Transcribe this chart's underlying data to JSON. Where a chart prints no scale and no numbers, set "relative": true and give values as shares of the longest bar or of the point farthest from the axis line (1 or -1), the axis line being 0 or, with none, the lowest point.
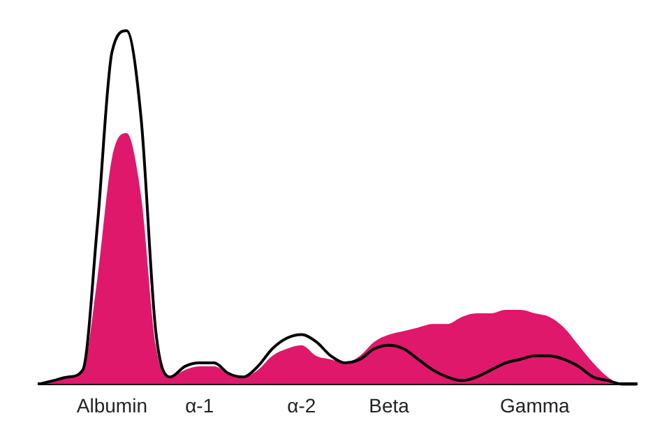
{
  "chart_data": {
    "type": "area",
    "relative": true,
    "legend": false,
    "grid": false,
    "marker": "none",
    "categories": [
      null,
      null,
      null,
      null,
      null,
      "Albumin",
      null,
      null,
      null,
      null,
      null,
      "α-1",
      null,
      null,
      null,
      null,
      null,
      null,
      "α-2",
      null,
      null,
      null,
      null,
      null,
      "Beta",
      null,
      null,
      null,
      null,
      null,
      null,
      null,
      null,
      null,
      "Gamma",
      null,
      null,
      null,
      null,
      null,
      null,
      null
    ],
    "series": [
      {
        "color": "#e0186c",
        "values": [
          0,
          0.01,
          0.02,
          0.04,
          0.3,
          0.64,
          0.71,
          0.53,
          0.11,
          0.02,
          0.04,
          0.05,
          0.05,
          0.03,
          0.02,
          0.04,
          0.08,
          0.1,
          0.11,
          0.08,
          0.07,
          0.06,
          0.08,
          0.12,
          0.14,
          0.15,
          0.16,
          0.17,
          0.17,
          0.19,
          0.2,
          0.2,
          0.21,
          0.21,
          0.2,
          0.19,
          0.16,
          0.11,
          0.06,
          0.02,
          0,
          0
        ]
      },
      {
        "type": "line",
        "color": "#000000",
        "values": [
          0,
          0.01,
          0.02,
          0.04,
          0.45,
          0.94,
          1,
          0.75,
          0.15,
          0.02,
          0.05,
          0.06,
          0.06,
          0.03,
          0.02,
          0.05,
          0.1,
          0.13,
          0.14,
          0.12,
          0.08,
          0.06,
          0.07,
          0.1,
          0.11,
          0.1,
          0.07,
          0.04,
          0.02,
          0.01,
          0.02,
          0.04,
          0.06,
          0.07,
          0.08,
          0.08,
          0.07,
          0.05,
          0.02,
          0.01,
          0,
          0
        ]
      }
    ]
  }
}
